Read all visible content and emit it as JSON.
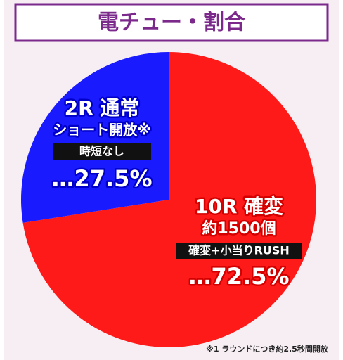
{
  "chart_data": {
    "type": "pie",
    "title": "電チュー・割合",
    "categories": [
      "10R 確変",
      "2R 通常"
    ],
    "details": [
      [
        "約1500個",
        "確変+小当りRUSH"
      ],
      [
        "ショート開放※",
        "時短なし"
      ]
    ],
    "values": [
      72.5,
      27.5
    ],
    "value_labels": [
      "…72.5%",
      "…27.5%"
    ],
    "colors": [
      "#ff1a1a",
      "#1a1aff"
    ],
    "footnote": "※1 ラウンドにつき約2.5秒間開放"
  }
}
